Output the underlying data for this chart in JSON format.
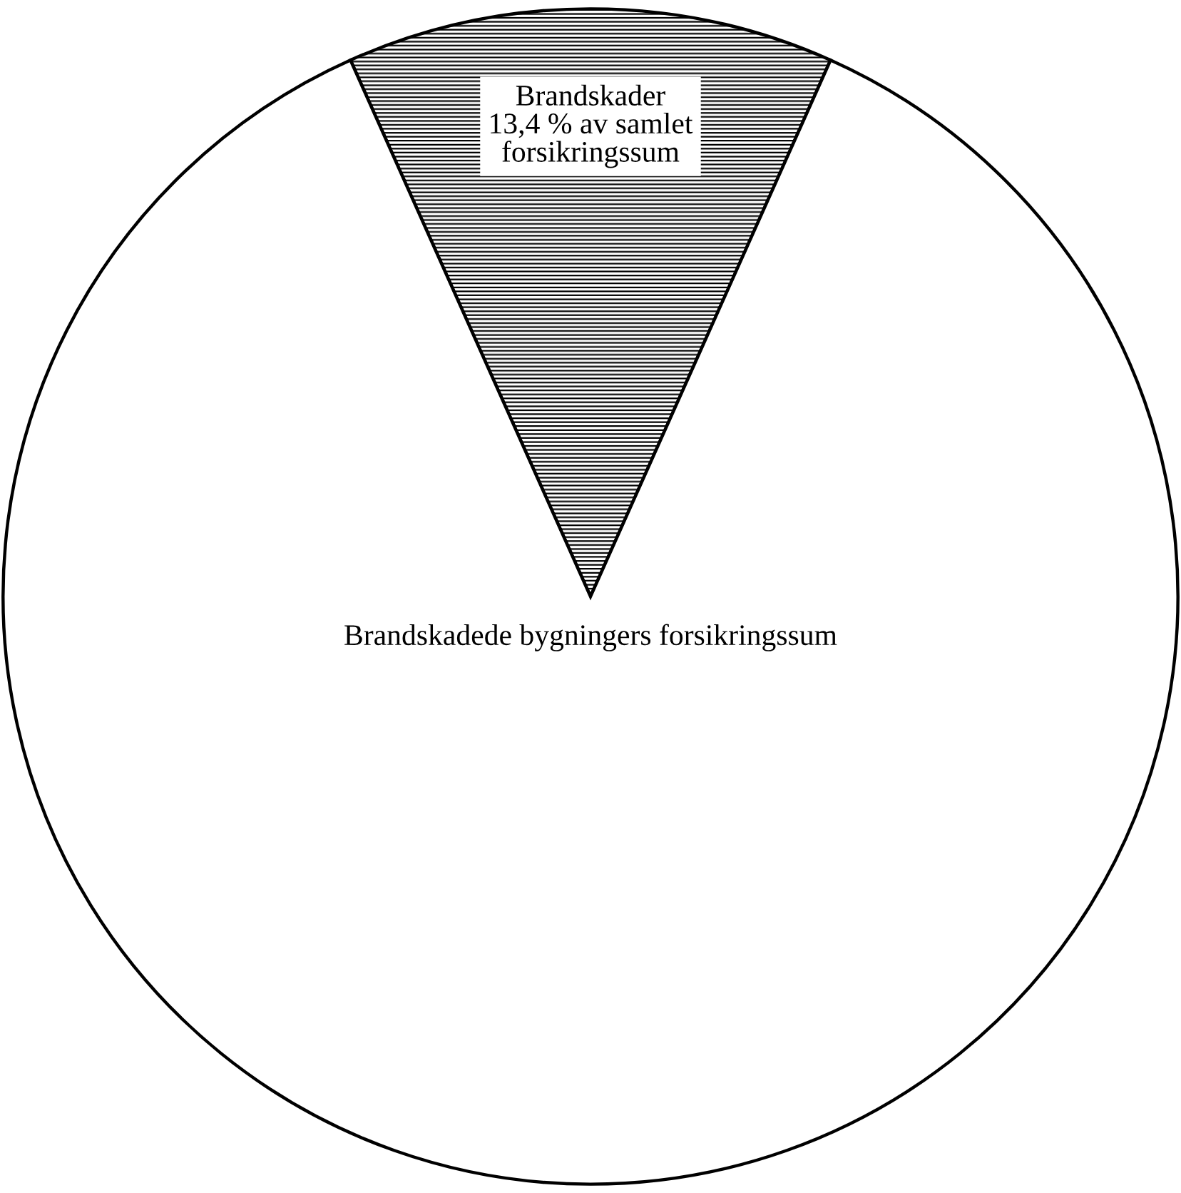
{
  "chart_data": {
    "type": "pie",
    "categories": [
      "Brandskader",
      "Brandskadede bygningers forsikringssum"
    ],
    "values": [
      13.4,
      86.6
    ],
    "colors": [
      "#000000",
      "#ffffff"
    ],
    "value_labels": [
      "13,4 % av samlet\nforsikringssum",
      null
    ],
    "legend": false
  }
}
